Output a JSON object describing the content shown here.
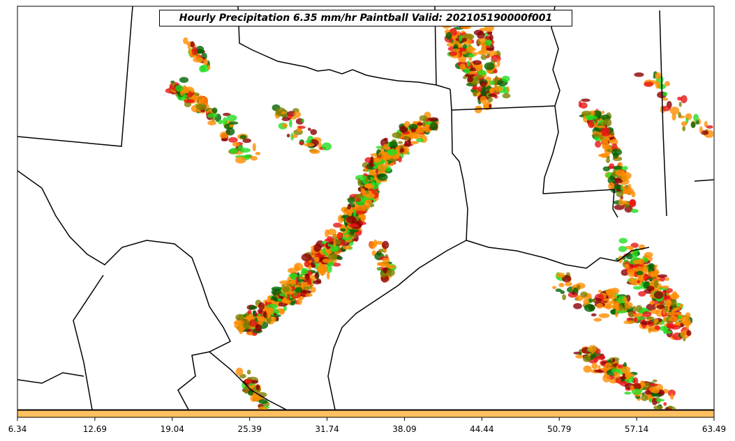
{
  "title": "Hourly Precipitation 6.35 mm/hr Paintball Valid: 202105190000f001",
  "colors": {
    "dark_red": "#8b0000",
    "red": "#e81414",
    "orange": "#ff8c00",
    "olive": "#808000",
    "dark_green": "#006400",
    "green": "#22dd22",
    "colorbar": "#ffc060",
    "border": "#000000"
  },
  "colorbar": {
    "ticks": [
      "6.34",
      "12.69",
      "19.04",
      "25.39",
      "31.74",
      "38.09",
      "44.44",
      "50.79",
      "57.14",
      "63.49"
    ]
  }
}
